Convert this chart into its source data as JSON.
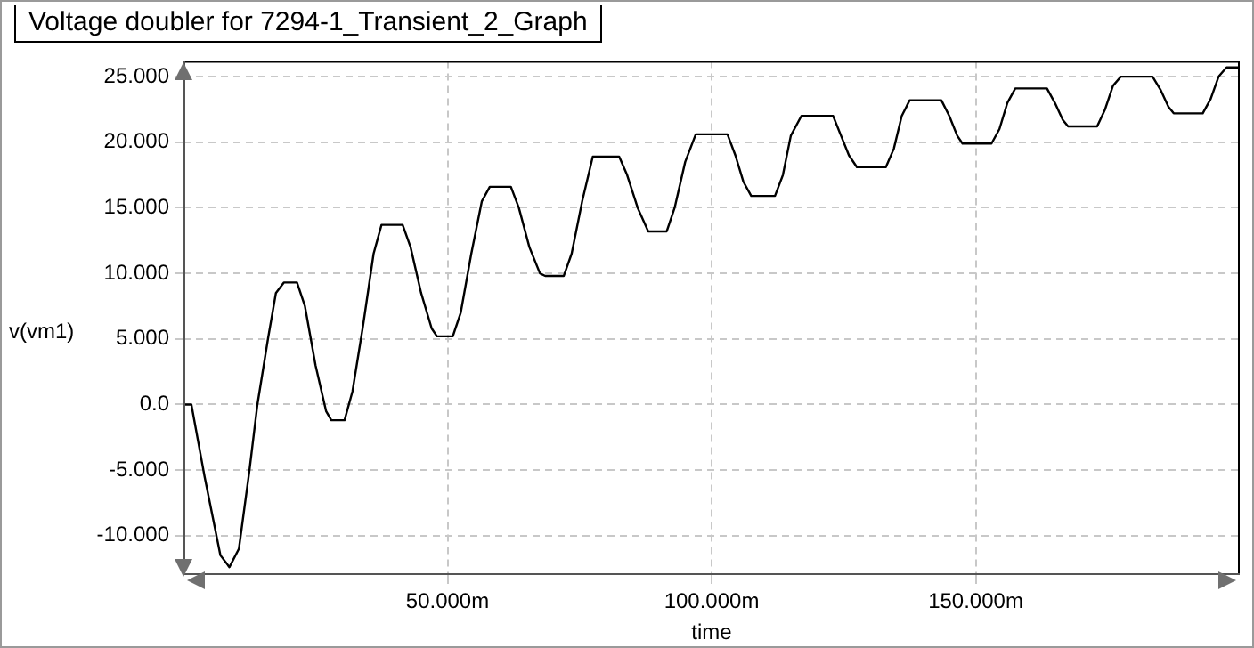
{
  "chart_data": {
    "type": "line",
    "title": "Voltage doubler for 7294-1_Transient_2_Graph",
    "xlabel": "time",
    "ylabel": "v(vm1)",
    "xlim": [
      0,
      200
    ],
    "ylim": [
      -13,
      26.2
    ],
    "xticks": [
      {
        "value": 50,
        "label": "50.000m"
      },
      {
        "value": 100,
        "label": "100.000m"
      },
      {
        "value": 150,
        "label": "150.000m"
      }
    ],
    "yticks": [
      {
        "value": -10,
        "label": "-10.000"
      },
      {
        "value": -5,
        "label": "-5.000"
      },
      {
        "value": 0,
        "label": "0.0"
      },
      {
        "value": 5,
        "label": "5.000"
      },
      {
        "value": 10,
        "label": "10.000"
      },
      {
        "value": 15,
        "label": "15.000"
      },
      {
        "value": 20,
        "label": "20.000"
      },
      {
        "value": 25,
        "label": "25.000"
      }
    ],
    "grid": true,
    "marker": "none",
    "line_style": "solid",
    "series": [
      {
        "color": "#000000",
        "x": [
          0,
          1.5,
          4,
          7,
          8.7,
          10.5,
          12.5,
          14,
          16,
          17.5,
          19,
          21.5,
          23,
          25,
          27,
          28,
          30.5,
          32,
          34,
          36,
          37.5,
          41.5,
          43,
          45,
          47,
          48,
          51,
          52.5,
          54.5,
          56.5,
          58,
          62,
          63.5,
          65.5,
          67.5,
          68.5,
          72,
          73.5,
          75.5,
          77.5,
          82.5,
          84,
          86,
          88,
          91.5,
          93,
          95,
          97,
          103,
          104.5,
          106,
          107.5,
          112,
          113.5,
          115,
          117,
          123,
          124.5,
          126,
          127.5,
          133,
          134.5,
          136,
          137.5,
          143.5,
          145,
          146.5,
          147.5,
          153,
          154.5,
          156,
          157.5,
          163.5,
          165,
          166.5,
          167.5,
          173,
          174.5,
          176,
          177.5,
          183.5,
          185,
          186.5,
          187.5,
          193,
          194.5,
          196,
          197.5,
          200
        ],
        "values": [
          0,
          0,
          -5.5,
          -11.5,
          -12.4,
          -11,
          -5,
          0,
          5,
          8.5,
          9.3,
          9.3,
          7.5,
          3,
          -0.5,
          -1.2,
          -1.2,
          1,
          6,
          11.5,
          13.7,
          13.7,
          12,
          8.5,
          5.8,
          5.2,
          5.2,
          7,
          11.5,
          15.5,
          16.6,
          16.6,
          15,
          12,
          10,
          9.8,
          9.8,
          11.5,
          15.5,
          18.9,
          18.9,
          17.5,
          15,
          13.2,
          13.2,
          15,
          18.5,
          20.6,
          20.6,
          19,
          17,
          15.9,
          15.9,
          17.5,
          20.5,
          22,
          22,
          20.5,
          19,
          18.1,
          18.1,
          19.5,
          22,
          23.2,
          23.2,
          22,
          20.5,
          19.9,
          19.9,
          21,
          23,
          24.1,
          24.1,
          23,
          21.7,
          21.2,
          21.2,
          22.5,
          24.3,
          25,
          25,
          24,
          22.7,
          22.2,
          22.2,
          23.3,
          25,
          25.7,
          25.7
        ]
      }
    ]
  }
}
